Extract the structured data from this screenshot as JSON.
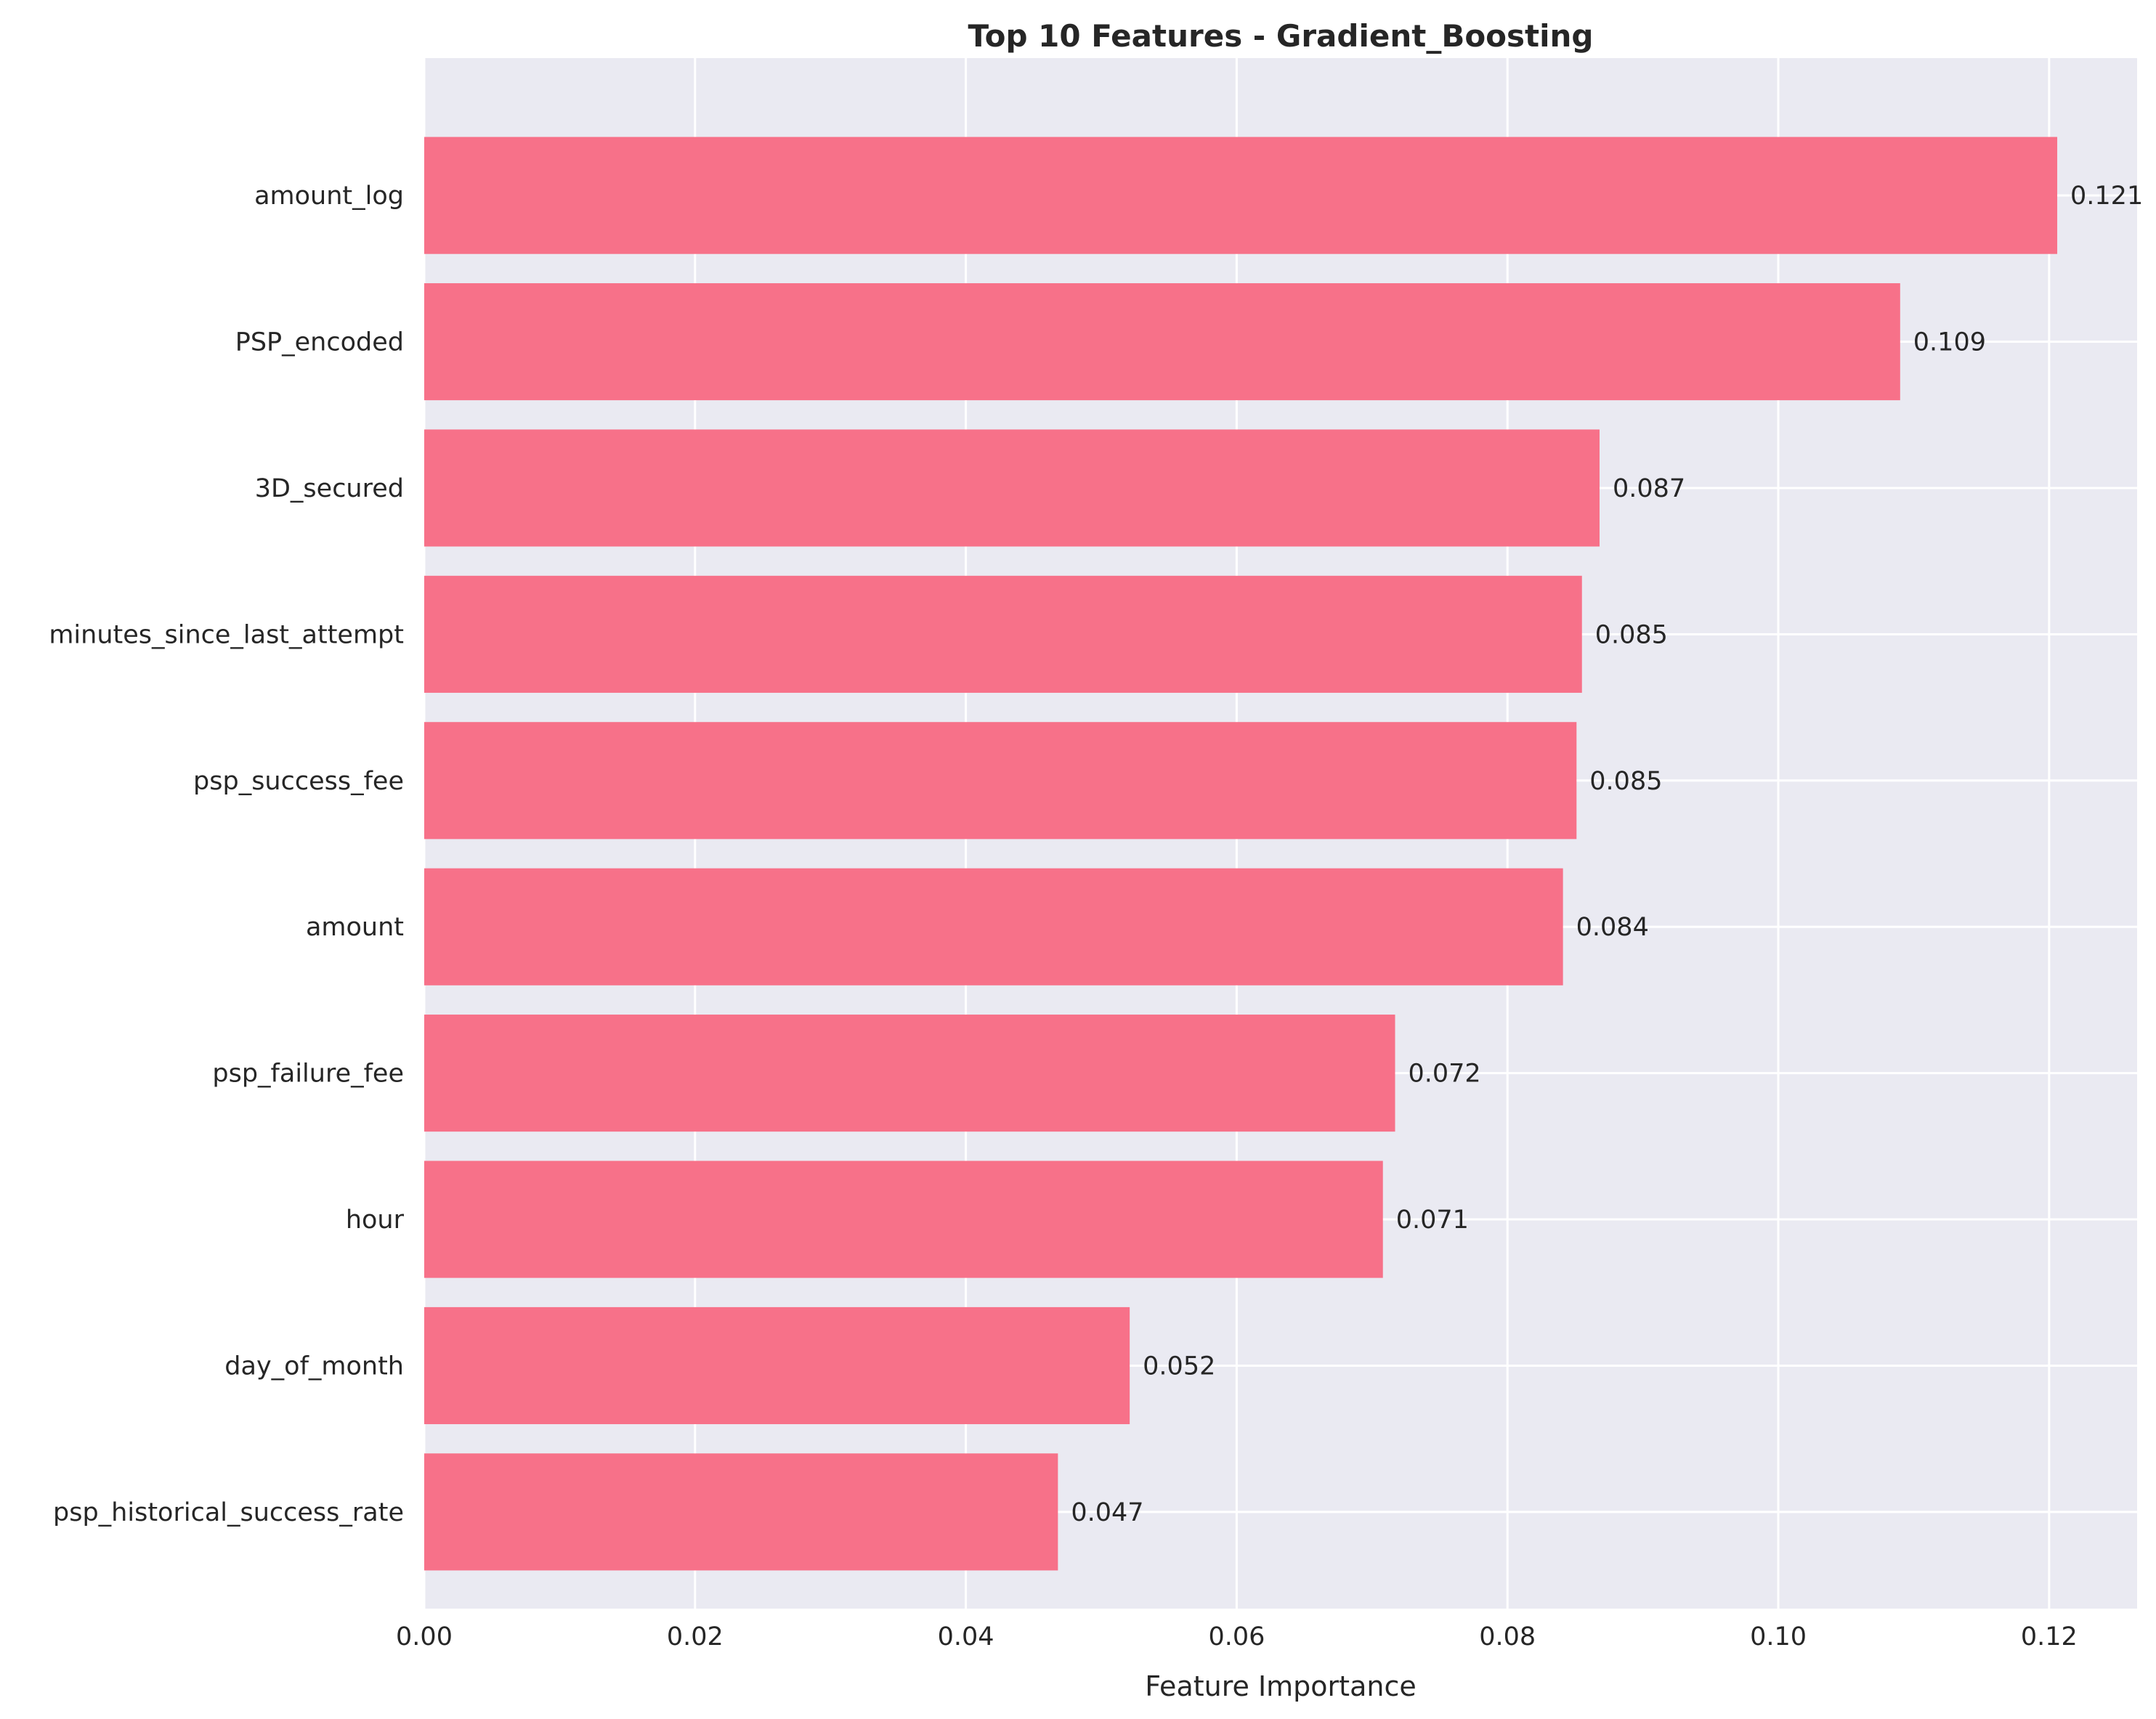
{
  "chart_data": {
    "type": "bar",
    "orientation": "horizontal",
    "title": "Top 10 Features - Gradient_Boosting",
    "xlabel": "Feature Importance",
    "ylabel": "",
    "xlim": [
      0,
      0.1265
    ],
    "xticks": [
      0.0,
      0.02,
      0.04,
      0.06,
      0.08,
      0.1,
      0.12
    ],
    "xtick_labels": [
      "0.00",
      "0.02",
      "0.04",
      "0.06",
      "0.08",
      "0.10",
      "0.12"
    ],
    "grid": true,
    "categories": [
      "amount_log",
      "PSP_encoded",
      "3D_secured",
      "minutes_since_last_attempt",
      "psp_success_fee",
      "amount",
      "psp_failure_fee",
      "hour",
      "day_of_month",
      "psp_historical_success_rate"
    ],
    "values": [
      0.1206,
      0.109,
      0.0868,
      0.0855,
      0.0851,
      0.0841,
      0.0717,
      0.0708,
      0.0521,
      0.0468
    ],
    "value_labels": [
      "0.121",
      "0.109",
      "0.087",
      "0.085",
      "0.085",
      "0.084",
      "0.072",
      "0.071",
      "0.052",
      "0.047"
    ],
    "colors": {
      "bar": "#f77189",
      "plot_background": "#eaeaf2",
      "grid": "#ffffff",
      "text": "#262626"
    }
  }
}
